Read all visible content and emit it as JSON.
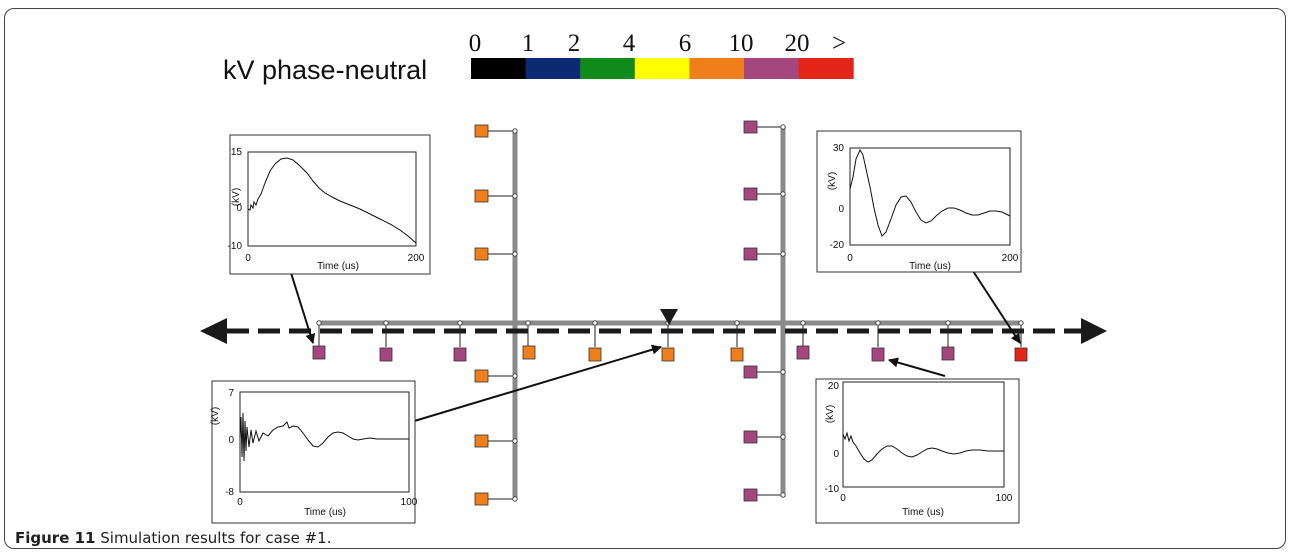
{
  "legend": {
    "title": "kV phase-neutral",
    "ticks": [
      "0",
      "1",
      "2",
      "4",
      "6",
      "10",
      "20",
      ">"
    ],
    "bins": [
      {
        "range": "0-1",
        "color": "#000000"
      },
      {
        "range": "1-2",
        "color": "#0b2a72"
      },
      {
        "range": "2-4",
        "color": "#118a1c"
      },
      {
        "range": "4-6",
        "color": "#ffff00"
      },
      {
        "range": "6-10",
        "color": "#ef7f1a"
      },
      {
        "range": "10-20",
        "color": "#a4477f"
      },
      {
        "range": ">20",
        "color": "#e32619"
      }
    ]
  },
  "colors": {
    "bus_line": "#808080",
    "feeder_arrow": "#1a1a1a",
    "orange": "#ef7f1a",
    "purple": "#a4477f",
    "red": "#e32619"
  },
  "insets": [
    {
      "id": "top-left",
      "ylabel": "(kV)",
      "xlabel": "Time (us)",
      "yticks": [
        "15",
        "0",
        "-10"
      ],
      "xticks": [
        "0",
        "200"
      ]
    },
    {
      "id": "top-right",
      "ylabel": "(kV)",
      "xlabel": "Time (us)",
      "yticks": [
        "30",
        "0",
        "-20"
      ],
      "xticks": [
        "0",
        "200"
      ]
    },
    {
      "id": "bottom-left",
      "ylabel": "(kV)",
      "xlabel": "Time (us)",
      "yticks": [
        "7",
        "0",
        "-8"
      ],
      "xticks": [
        "0",
        "100"
      ]
    },
    {
      "id": "bottom-right",
      "ylabel": "(kV)",
      "xlabel": "Time (us)",
      "yticks": [
        "20",
        "0",
        "-10"
      ],
      "xticks": [
        "0",
        "100"
      ]
    }
  ],
  "caption": {
    "label": "Figure 11",
    "text": " Simulation results for case #1."
  }
}
